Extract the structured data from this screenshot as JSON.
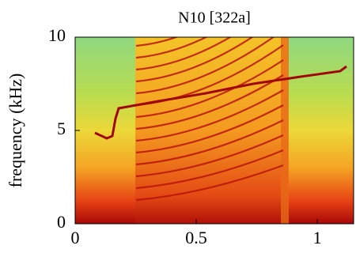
{
  "chart_data": {
    "type": "spectrogram",
    "title": "N10 [322a]",
    "y_label": "frequency (kHz)",
    "xlim": [
      0,
      1.15
    ],
    "xticks": [
      0,
      0.5,
      1
    ],
    "ylim": [
      0,
      10
    ],
    "yticks": [
      0,
      5,
      10
    ]
  }
}
